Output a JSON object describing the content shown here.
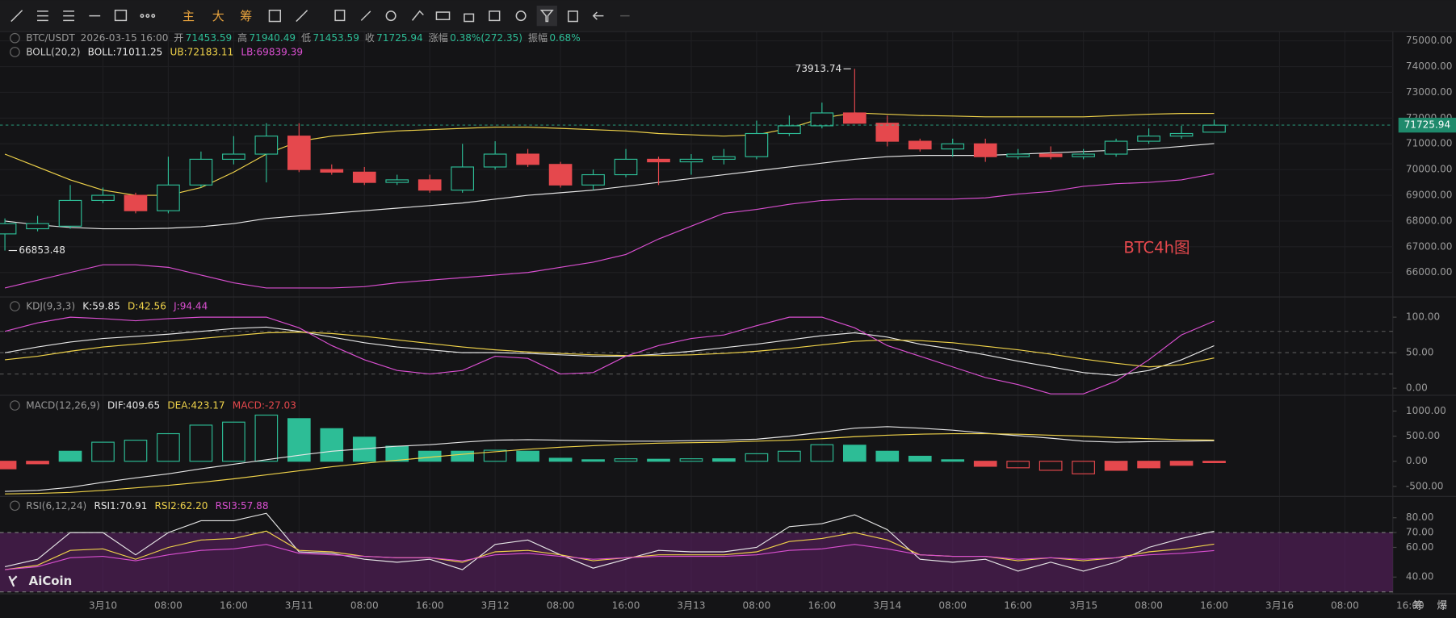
{
  "toolbar": {
    "buttons": [
      "主",
      "大",
      "筹"
    ],
    "corner": [
      "筹",
      "爆"
    ]
  },
  "logo": "AiCoin",
  "chart_data": [
    {
      "type": "candlestick",
      "indicator": "BOLL(20,2)",
      "annotation": "BTC4h图",
      "info": {
        "symbol": "BTC/USDT",
        "time": "2026-03-15 16:00",
        "open_label": "开",
        "high_label": "高",
        "low_label": "低",
        "close_label": "收",
        "change_label": "涨幅",
        "change": "0.38%(272.35)",
        "amplitude_label": "振幅",
        "amplitude": "0.68%"
      },
      "categories": [
        null,
        null,
        null,
        null,
        null,
        null,
        null,
        null,
        null,
        null,
        null,
        null,
        null,
        null,
        null,
        null,
        null,
        null,
        null,
        null,
        null,
        null,
        null,
        null,
        null,
        null,
        null,
        null,
        null,
        null,
        null,
        null,
        null,
        null,
        null,
        null,
        null,
        null
      ],
      "open": [
        67500,
        67700,
        67800,
        68800,
        69000,
        68400,
        69400,
        70400,
        70600,
        71300,
        70000,
        69900,
        69500,
        69600,
        69200,
        70100,
        70600,
        70200,
        69400,
        69800,
        70400,
        70300,
        70400,
        70500,
        71400,
        71700,
        72200,
        71800,
        71100,
        70800,
        71000,
        70500,
        70600,
        70500,
        70600,
        71100,
        71300,
        71453.59
      ],
      "high": [
        68100,
        68200,
        69400,
        69300,
        69100,
        70500,
        70700,
        71300,
        71800,
        71800,
        70200,
        70100,
        69800,
        69800,
        71000,
        71100,
        70800,
        70300,
        70000,
        70800,
        70500,
        70600,
        70800,
        71900,
        72100,
        72600,
        73913.74,
        72100,
        71200,
        71200,
        71200,
        70800,
        70900,
        70800,
        71200,
        71600,
        71700,
        71940.49
      ],
      "low": [
        66853.48,
        67600,
        67700,
        68700,
        68300,
        68300,
        69300,
        70200,
        69500,
        69900,
        69800,
        69400,
        69400,
        69100,
        69100,
        70000,
        70100,
        69300,
        69200,
        69700,
        69400,
        69800,
        70200,
        70400,
        71300,
        71600,
        71800,
        70900,
        70700,
        70500,
        70300,
        70400,
        70400,
        70400,
        70500,
        71000,
        71200,
        71453.59
      ],
      "close": [
        67900,
        67900,
        68800,
        69000,
        68400,
        69400,
        70400,
        70600,
        71300,
        70000,
        69900,
        69500,
        69600,
        69200,
        70100,
        70600,
        70200,
        69400,
        69800,
        70400,
        70300,
        70400,
        70500,
        71400,
        71700,
        72200,
        71800,
        71100,
        70800,
        71000,
        70500,
        70600,
        70500,
        70600,
        71100,
        71300,
        71400,
        71725.94
      ],
      "up_color": "#2dbd96",
      "down_color": "#e5484d",
      "series": [
        {
          "name": "BOLL:",
          "color": "#e6e6e6",
          "values": [
            68000,
            67850,
            67750,
            67700,
            67700,
            67720,
            67780,
            67900,
            68100,
            68200,
            68300,
            68400,
            68500,
            68600,
            68700,
            68850,
            69000,
            69100,
            69200,
            69350,
            69500,
            69650,
            69800,
            69950,
            70100,
            70250,
            70400,
            70500,
            70550,
            70550,
            70550,
            70600,
            70650,
            70700,
            70750,
            70800,
            70900,
            71011.25
          ]
        },
        {
          "name": "UB:",
          "color": "#f0d34a",
          "values": [
            70600,
            70100,
            69600,
            69200,
            69000,
            69000,
            69300,
            69900,
            70600,
            71100,
            71300,
            71400,
            71500,
            71550,
            71600,
            71650,
            71650,
            71600,
            71550,
            71500,
            71400,
            71350,
            71300,
            71350,
            71600,
            72000,
            72200,
            72150,
            72100,
            72080,
            72050,
            72050,
            72050,
            72050,
            72100,
            72150,
            72180,
            72183.11
          ]
        },
        {
          "name": "LB:",
          "color": "#d94fd0",
          "values": [
            65400,
            65700,
            66000,
            66300,
            66300,
            66200,
            65900,
            65600,
            65400,
            65400,
            65400,
            65450,
            65600,
            65700,
            65800,
            65900,
            66000,
            66200,
            66400,
            66700,
            67300,
            67800,
            68300,
            68450,
            68650,
            68800,
            68850,
            68850,
            68850,
            68850,
            68900,
            69050,
            69150,
            69350,
            69450,
            69500,
            69600,
            69839.39
          ]
        }
      ],
      "xlim": [
        -0.15,
        44.4
      ],
      "xticks": [
        {
          "value": 3,
          "label": "3月10"
        },
        {
          "value": 5,
          "label": "08:00"
        },
        {
          "value": 7,
          "label": "16:00"
        },
        {
          "value": 9,
          "label": "3月11"
        },
        {
          "value": 11,
          "label": "08:00"
        },
        {
          "value": 13,
          "label": "16:00"
        },
        {
          "value": 15,
          "label": "3月12"
        },
        {
          "value": 17,
          "label": "08:00"
        },
        {
          "value": 19,
          "label": "16:00"
        },
        {
          "value": 21,
          "label": "3月13"
        },
        {
          "value": 23,
          "label": "08:00"
        },
        {
          "value": 25,
          "label": "16:00"
        },
        {
          "value": 27,
          "label": "3月14"
        },
        {
          "value": 29,
          "label": "08:00"
        },
        {
          "value": 31,
          "label": "16:00"
        },
        {
          "value": 33,
          "label": "3月15"
        },
        {
          "value": 35,
          "label": "08:00"
        },
        {
          "value": 37,
          "label": "16:00"
        },
        {
          "value": 39,
          "label": "3月16"
        },
        {
          "value": 41,
          "label": "08:00"
        },
        {
          "value": 43,
          "label": "16:00"
        }
      ],
      "ylim": [
        65050,
        75360
      ],
      "yticks": [
        {
          "value": 75000,
          "label": "75000.00"
        },
        {
          "value": 74000,
          "label": "74000.00"
        },
        {
          "value": 73000,
          "label": "73000.00"
        },
        {
          "value": 72000,
          "label": "72000.00"
        },
        {
          "value": 71000,
          "label": "71000.00"
        },
        {
          "value": 70000,
          "label": "70000.00"
        },
        {
          "value": 69000,
          "label": "69000.00"
        },
        {
          "value": 68000,
          "label": "68000.00"
        },
        {
          "value": 67000,
          "label": "67000.00"
        },
        {
          "value": 66000,
          "label": "66000.00"
        }
      ],
      "grid": true
    },
    {
      "type": "line",
      "title": "KDJ(9,3,3)",
      "series": [
        {
          "name": "K:",
          "color": "#e6e6e6",
          "values": [
            50,
            58,
            65,
            70,
            73,
            76,
            80,
            84,
            86,
            80,
            72,
            64,
            58,
            54,
            50,
            50,
            49,
            47,
            45,
            45,
            48,
            52,
            57,
            62,
            68,
            74,
            78,
            72,
            62,
            55,
            47,
            38,
            30,
            22,
            18,
            25,
            40,
            59.85
          ]
        },
        {
          "name": "D:",
          "color": "#f0d34a",
          "values": [
            40,
            45,
            52,
            58,
            62,
            66,
            70,
            74,
            78,
            79,
            77,
            73,
            68,
            63,
            58,
            54,
            51,
            49,
            47,
            46,
            46,
            47,
            49,
            52,
            56,
            61,
            66,
            68,
            67,
            64,
            59,
            54,
            48,
            41,
            35,
            30,
            33,
            42.56
          ]
        },
        {
          "name": "J:",
          "color": "#d94fd0",
          "values": [
            80,
            92,
            100,
            98,
            95,
            98,
            100,
            100,
            100,
            85,
            60,
            40,
            25,
            20,
            25,
            45,
            42,
            20,
            22,
            45,
            60,
            70,
            75,
            88,
            100,
            100,
            85,
            60,
            45,
            30,
            15,
            5,
            -8,
            -8,
            10,
            40,
            75,
            94.44
          ]
        }
      ],
      "levels": [
        80,
        50,
        20
      ],
      "ylim": [
        -10,
        128.5
      ],
      "yticks": [
        {
          "value": 100,
          "label": "100.00"
        },
        {
          "value": 50,
          "label": "50.00"
        },
        {
          "value": 0,
          "label": "0.00"
        }
      ]
    },
    {
      "type": "macd",
      "title": "MACD(12,26,9)",
      "series": [
        {
          "name": "DIF:",
          "color": "#e6e6e6",
          "values": [
            -600,
            -580,
            -520,
            -420,
            -330,
            -250,
            -150,
            -60,
            30,
            120,
            200,
            250,
            300,
            330,
            380,
            420,
            430,
            420,
            410,
            400,
            400,
            410,
            420,
            440,
            500,
            580,
            660,
            690,
            660,
            620,
            560,
            510,
            460,
            400,
            380,
            390,
            400,
            409.65
          ]
        },
        {
          "name": "DEA:",
          "color": "#f0d34a",
          "values": [
            -650,
            -640,
            -620,
            -580,
            -530,
            -480,
            -420,
            -350,
            -270,
            -190,
            -110,
            -40,
            20,
            80,
            140,
            190,
            240,
            280,
            310,
            340,
            360,
            370,
            380,
            400,
            420,
            450,
            490,
            520,
            540,
            550,
            550,
            540,
            520,
            500,
            470,
            450,
            430,
            423.17
          ]
        }
      ],
      "histogram": {
        "name": "MACD:",
        "values": [
          -150,
          -50,
          200,
          380,
          420,
          550,
          720,
          780,
          920,
          850,
          650,
          480,
          300,
          200,
          200,
          220,
          200,
          60,
          30,
          50,
          40,
          50,
          50,
          150,
          200,
          330,
          320,
          200,
          100,
          30,
          -100,
          -130,
          -180,
          -250,
          -180,
          -130,
          -80,
          -27.03
        ]
      },
      "up_color": "#2dbd96",
      "down_color": "#e5484d",
      "ylim": [
        -700,
        1315
      ],
      "yticks": [
        {
          "value": 1000,
          "label": "1000.00"
        },
        {
          "value": 500,
          "label": "500.00"
        },
        {
          "value": 0,
          "label": "0.00"
        },
        {
          "value": -500,
          "label": "-500.00"
        }
      ]
    },
    {
      "type": "line",
      "title": "RSI(6,12,24)",
      "series": [
        {
          "name": "RSI1:",
          "color": "#e6e6e6",
          "values": [
            47,
            52,
            70,
            70,
            55,
            70,
            78,
            78,
            83,
            57,
            56,
            52,
            50,
            52,
            45,
            62,
            65,
            55,
            46,
            52,
            58,
            57,
            57,
            60,
            74,
            76,
            82,
            72,
            52,
            50,
            52,
            44,
            50,
            44,
            50,
            60,
            66,
            70.91
          ]
        },
        {
          "name": "RSI2:",
          "color": "#f0d34a",
          "values": [
            45,
            48,
            58,
            59,
            52,
            60,
            65,
            66,
            71,
            58,
            57,
            54,
            53,
            53,
            50,
            57,
            58,
            55,
            51,
            53,
            55,
            55,
            55,
            57,
            64,
            66,
            70,
            65,
            55,
            54,
            54,
            51,
            53,
            51,
            53,
            57,
            59,
            62.2
          ],
          "value_labels": [
            null,
            null,
            null,
            null,
            null,
            null,
            null,
            null,
            null,
            null,
            null,
            null,
            null,
            null,
            null,
            null,
            null,
            null,
            null,
            null,
            null,
            null,
            null,
            null,
            null,
            null,
            null,
            null,
            null,
            null,
            null,
            null,
            null,
            null,
            null,
            null,
            null,
            "62.20"
          ]
        },
        {
          "name": "RSI3:",
          "color": "#d94fd0",
          "values": [
            45,
            47,
            53,
            54,
            51,
            55,
            58,
            59,
            62,
            56,
            55,
            54,
            53,
            53,
            51,
            55,
            56,
            54,
            52,
            53,
            54,
            54,
            54,
            55,
            58,
            59,
            62,
            59,
            55,
            54,
            54,
            52,
            53,
            52,
            53,
            55,
            56,
            57.88
          ]
        }
      ],
      "band": [
        30,
        70
      ],
      "band_color": "#5a1f63",
      "ylim": [
        28.7,
        94.4
      ],
      "yticks": [
        {
          "value": 80,
          "label": "80.00"
        },
        {
          "value": 70,
          "label": "70.00"
        },
        {
          "value": 60,
          "label": "60.00"
        },
        {
          "value": 40,
          "label": "40.00"
        }
      ]
    }
  ]
}
